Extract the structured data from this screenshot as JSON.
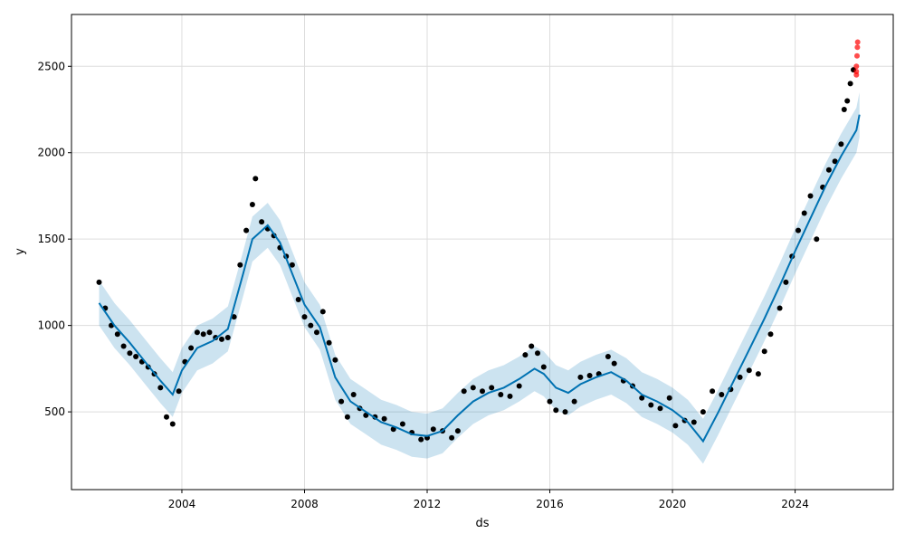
{
  "chart_data": {
    "type": "line",
    "title": "",
    "xlabel": "ds",
    "ylabel": "y",
    "xlim": [
      2000.4,
      2027.2
    ],
    "ylim": [
      50,
      2800
    ],
    "grid": true,
    "x_ticks": [
      2004,
      2008,
      2012,
      2016,
      2020,
      2024
    ],
    "x_tick_labels": [
      "2004",
      "2008",
      "2012",
      "2016",
      "2020",
      "2024"
    ],
    "y_ticks": [
      500,
      1000,
      1500,
      2000,
      2500
    ],
    "y_tick_labels": [
      "500",
      "1000",
      "1500",
      "2000",
      "2500"
    ],
    "colors": {
      "forecast_line": "#0072B2",
      "uncertainty_band": "#0072B2",
      "observed_points": "#000000",
      "recent_points": "#FF0000",
      "grid": "#dddddd"
    },
    "forecast": [
      [
        2001.3,
        1130
      ],
      [
        2001.8,
        1000
      ],
      [
        2002.3,
        900
      ],
      [
        2002.8,
        790
      ],
      [
        2003.3,
        680
      ],
      [
        2003.7,
        600
      ],
      [
        2004.0,
        740
      ],
      [
        2004.5,
        870
      ],
      [
        2005.0,
        910
      ],
      [
        2005.5,
        980
      ],
      [
        2006.0,
        1300
      ],
      [
        2006.3,
        1500
      ],
      [
        2006.8,
        1580
      ],
      [
        2007.2,
        1480
      ],
      [
        2007.6,
        1300
      ],
      [
        2008.0,
        1120
      ],
      [
        2008.5,
        990
      ],
      [
        2009.0,
        700
      ],
      [
        2009.5,
        560
      ],
      [
        2010.0,
        500
      ],
      [
        2010.5,
        440
      ],
      [
        2011.0,
        410
      ],
      [
        2011.5,
        370
      ],
      [
        2012.0,
        360
      ],
      [
        2012.5,
        390
      ],
      [
        2013.0,
        480
      ],
      [
        2013.5,
        560
      ],
      [
        2014.0,
        610
      ],
      [
        2014.5,
        640
      ],
      [
        2015.0,
        690
      ],
      [
        2015.5,
        750
      ],
      [
        2015.8,
        720
      ],
      [
        2016.2,
        640
      ],
      [
        2016.6,
        610
      ],
      [
        2017.0,
        660
      ],
      [
        2017.5,
        700
      ],
      [
        2018.0,
        730
      ],
      [
        2018.5,
        680
      ],
      [
        2019.0,
        600
      ],
      [
        2019.5,
        560
      ],
      [
        2020.0,
        510
      ],
      [
        2020.5,
        440
      ],
      [
        2021.0,
        330
      ],
      [
        2021.5,
        500
      ],
      [
        2022.0,
        680
      ],
      [
        2022.5,
        860
      ],
      [
        2023.0,
        1040
      ],
      [
        2023.5,
        1230
      ],
      [
        2024.0,
        1430
      ],
      [
        2024.5,
        1620
      ],
      [
        2025.0,
        1810
      ],
      [
        2025.5,
        1980
      ],
      [
        2026.0,
        2130
      ],
      [
        2026.1,
        2220
      ]
    ],
    "band_halfwidth": 130,
    "observed": [
      [
        2001.3,
        1250
      ],
      [
        2001.5,
        1100
      ],
      [
        2001.7,
        1000
      ],
      [
        2001.9,
        950
      ],
      [
        2002.1,
        880
      ],
      [
        2002.3,
        840
      ],
      [
        2002.5,
        820
      ],
      [
        2002.7,
        790
      ],
      [
        2002.9,
        760
      ],
      [
        2003.1,
        720
      ],
      [
        2003.3,
        640
      ],
      [
        2003.5,
        470
      ],
      [
        2003.7,
        430
      ],
      [
        2003.9,
        620
      ],
      [
        2004.1,
        790
      ],
      [
        2004.3,
        870
      ],
      [
        2004.5,
        960
      ],
      [
        2004.7,
        950
      ],
      [
        2004.9,
        960
      ],
      [
        2005.1,
        930
      ],
      [
        2005.3,
        920
      ],
      [
        2005.5,
        930
      ],
      [
        2005.7,
        1050
      ],
      [
        2005.9,
        1350
      ],
      [
        2006.1,
        1550
      ],
      [
        2006.3,
        1700
      ],
      [
        2006.4,
        1850
      ],
      [
        2006.6,
        1600
      ],
      [
        2006.8,
        1560
      ],
      [
        2007.0,
        1520
      ],
      [
        2007.2,
        1450
      ],
      [
        2007.4,
        1400
      ],
      [
        2007.6,
        1350
      ],
      [
        2007.8,
        1150
      ],
      [
        2008.0,
        1050
      ],
      [
        2008.2,
        1000
      ],
      [
        2008.4,
        960
      ],
      [
        2008.6,
        1080
      ],
      [
        2008.8,
        900
      ],
      [
        2009.0,
        800
      ],
      [
        2009.2,
        560
      ],
      [
        2009.4,
        470
      ],
      [
        2009.6,
        600
      ],
      [
        2009.8,
        520
      ],
      [
        2010.0,
        480
      ],
      [
        2010.3,
        470
      ],
      [
        2010.6,
        460
      ],
      [
        2010.9,
        400
      ],
      [
        2011.2,
        430
      ],
      [
        2011.5,
        380
      ],
      [
        2011.8,
        340
      ],
      [
        2012.0,
        350
      ],
      [
        2012.2,
        400
      ],
      [
        2012.5,
        390
      ],
      [
        2012.8,
        350
      ],
      [
        2013.0,
        390
      ],
      [
        2013.2,
        620
      ],
      [
        2013.5,
        640
      ],
      [
        2013.8,
        620
      ],
      [
        2014.1,
        640
      ],
      [
        2014.4,
        600
      ],
      [
        2014.7,
        590
      ],
      [
        2015.0,
        650
      ],
      [
        2015.2,
        830
      ],
      [
        2015.4,
        880
      ],
      [
        2015.6,
        840
      ],
      [
        2015.8,
        760
      ],
      [
        2016.0,
        560
      ],
      [
        2016.2,
        510
      ],
      [
        2016.5,
        500
      ],
      [
        2016.8,
        560
      ],
      [
        2017.0,
        700
      ],
      [
        2017.3,
        710
      ],
      [
        2017.6,
        720
      ],
      [
        2017.9,
        820
      ],
      [
        2018.1,
        780
      ],
      [
        2018.4,
        680
      ],
      [
        2018.7,
        650
      ],
      [
        2019.0,
        580
      ],
      [
        2019.3,
        540
      ],
      [
        2019.6,
        520
      ],
      [
        2019.9,
        580
      ],
      [
        2020.1,
        420
      ],
      [
        2020.4,
        450
      ],
      [
        2020.7,
        440
      ],
      [
        2021.0,
        500
      ],
      [
        2021.3,
        620
      ],
      [
        2021.6,
        600
      ],
      [
        2021.9,
        630
      ],
      [
        2022.2,
        700
      ],
      [
        2022.5,
        740
      ],
      [
        2022.8,
        720
      ],
      [
        2023.0,
        850
      ],
      [
        2023.2,
        950
      ],
      [
        2023.5,
        1100
      ],
      [
        2023.7,
        1250
      ],
      [
        2023.9,
        1400
      ],
      [
        2024.1,
        1550
      ],
      [
        2024.3,
        1650
      ],
      [
        2024.5,
        1750
      ],
      [
        2024.7,
        1500
      ],
      [
        2024.9,
        1800
      ],
      [
        2025.1,
        1900
      ],
      [
        2025.3,
        1950
      ],
      [
        2025.5,
        2050
      ],
      [
        2025.6,
        2250
      ],
      [
        2025.7,
        2300
      ],
      [
        2025.8,
        2400
      ],
      [
        2025.9,
        2480
      ]
    ],
    "recent": [
      [
        2026.0,
        2450
      ],
      [
        2026.0,
        2500
      ],
      [
        2026.02,
        2560
      ],
      [
        2026.03,
        2610
      ],
      [
        2026.04,
        2640
      ],
      [
        2026.0,
        2470
      ]
    ]
  }
}
